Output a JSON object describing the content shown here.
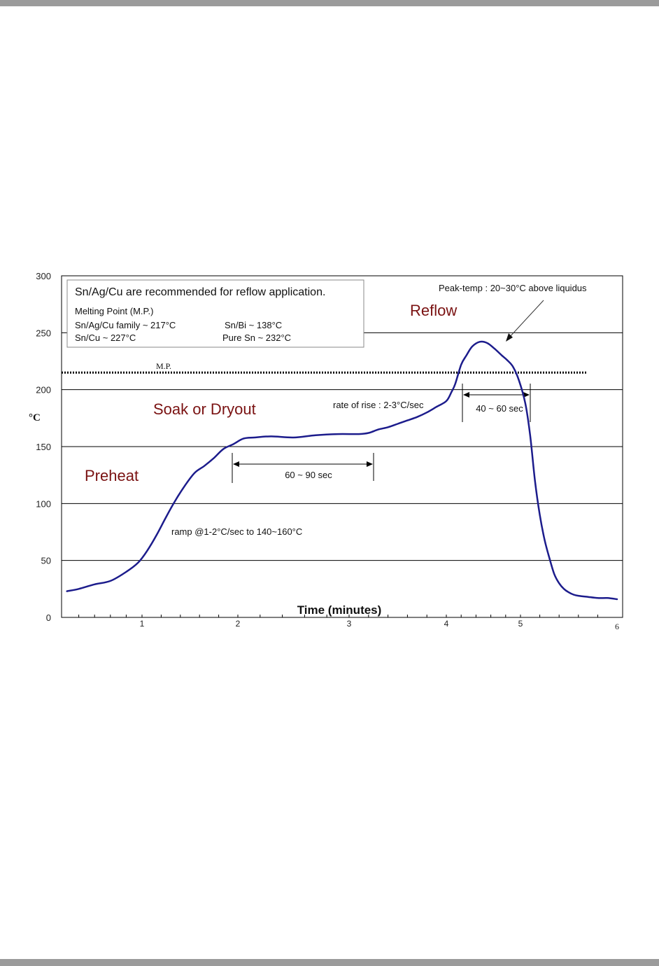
{
  "chart_data": {
    "type": "line",
    "title": "",
    "xlabel": "Time (minutes)",
    "ylabel": "°C",
    "ylim": [
      0,
      300
    ],
    "yticks": [
      "0",
      "50",
      "100",
      "150",
      "200",
      "250",
      "300"
    ],
    "xticks": [
      {
        "label": "1",
        "x": 1.0
      },
      {
        "label": "2",
        "x": 2.0
      },
      {
        "label": "3",
        "x": 3.0
      },
      {
        "label": "4",
        "x": 4.0
      },
      {
        "label": "5",
        "x": 5.0
      },
      {
        "label": "6",
        "x": 6.0
      }
    ],
    "grid": true,
    "series": [
      {
        "x": [
          0.05,
          0.2,
          0.4,
          0.6,
          0.8,
          0.95,
          1.05,
          1.15,
          1.25,
          1.35,
          1.45,
          1.55,
          1.65,
          1.75,
          1.85,
          1.95,
          2.05,
          2.15,
          2.3,
          2.5,
          2.7,
          2.9,
          3.1,
          3.2,
          3.3,
          3.4,
          3.5,
          3.6,
          3.7,
          3.8,
          3.9,
          4.0,
          4.07,
          4.12,
          4.2,
          4.27,
          4.35,
          4.45,
          4.55,
          4.65,
          4.75,
          4.82,
          4.9,
          4.98,
          5.05,
          5.1,
          5.15,
          5.2,
          5.25,
          5.3,
          5.35,
          5.4,
          5.45,
          5.5,
          5.55,
          5.6,
          5.7,
          5.8,
          5.9,
          6.0
        ],
        "y": [
          23,
          25,
          29,
          32,
          40,
          48,
          58,
          72,
          88,
          103,
          116,
          127,
          133,
          140,
          148,
          152,
          157,
          158,
          159,
          158,
          160,
          161,
          161,
          162,
          165,
          167,
          170,
          173,
          176,
          180,
          185,
          190,
          198,
          205,
          222,
          230,
          238,
          242,
          241,
          236,
          230,
          226,
          220,
          208,
          188,
          160,
          120,
          90,
          68,
          52,
          38,
          30,
          25,
          22,
          20,
          19,
          18,
          17,
          17,
          16
        ]
      }
    ],
    "melting_point_line": {
      "label": "M.P.",
      "y": 215
    },
    "annotations": {
      "preheat": "Preheat",
      "soak": "Soak or Dryout",
      "reflow": "Reflow",
      "ramp": "ramp @1-2°C/sec to 140~160°C",
      "rate_of_rise": "rate of rise : 2-3°C/sec",
      "peak_temp": "Peak-temp : 20~30°C above liquidus",
      "soak_span": "60 ~ 90 sec",
      "reflow_span": "40 ~ 60 sec"
    },
    "legend_box": {
      "title": "Sn/Ag/Cu are recommended for reflow application.",
      "line1": "Melting Point (M.P.)",
      "line2a": "Sn/Ag/Cu family ~  217°C",
      "line2b": "Sn/Bi ~ 138°C",
      "line3a": "Sn/Cu ~ 227°C",
      "line3b": "Pure Sn ~ 232°C"
    },
    "colors": {
      "curve": "#1c1c8c",
      "region_text": "#7a1212",
      "grid": "#000000"
    }
  }
}
